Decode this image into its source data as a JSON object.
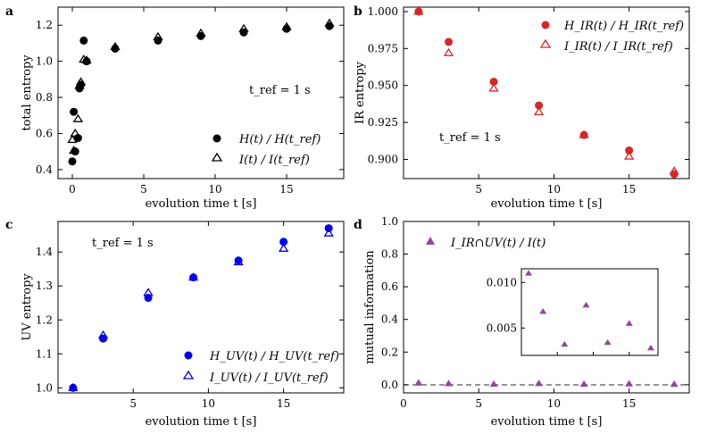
{
  "figure": {
    "panels": [
      {
        "panel_label": "a",
        "xlabel": "evolution time t [s]",
        "ylabel": "total entropy",
        "annotation": "t_ref = 1 s",
        "legend": [
          "H(t) / H(t_ref)",
          "I(t) / I(t_ref)"
        ],
        "xticks": [
          "0",
          "5",
          "10",
          "15"
        ],
        "yticks": [
          "0.4",
          "0.6",
          "0.8",
          "1.0",
          "1.2"
        ]
      },
      {
        "panel_label": "b",
        "xlabel": "evolution time t [s]",
        "ylabel": "IR entropy",
        "annotation": "t_ref = 1 s",
        "legend": [
          "H_IR(t) / H_IR(t_ref)",
          "I_IR(t) / I_IR(t_ref)"
        ],
        "xticks": [
          "5",
          "10",
          "15"
        ],
        "yticks": [
          "0.900",
          "0.925",
          "0.950",
          "0.975",
          "1.000"
        ]
      },
      {
        "panel_label": "c",
        "xlabel": "evolution time t [s]",
        "ylabel": "UV entropy",
        "annotation": "t_ref = 1 s",
        "legend": [
          "H_UV(t) / H_UV(t_ref)",
          "I_UV(t) / I_UV(t_ref)"
        ],
        "xticks": [
          "5",
          "10",
          "15"
        ],
        "yticks": [
          "1.0",
          "1.1",
          "1.2",
          "1.3",
          "1.4"
        ]
      },
      {
        "panel_label": "d",
        "xlabel": "evolution time t [s]",
        "ylabel": "mutual information",
        "legend": [
          "I_IR∩UV(t) / I(t)"
        ],
        "xticks": [
          "0",
          "5",
          "10",
          "15"
        ],
        "yticks": [
          "0.0",
          "0.2",
          "0.4",
          "0.6",
          "0.8",
          "1.0"
        ],
        "inset_yticks": [
          "0.005",
          "0.010"
        ]
      }
    ]
  },
  "chart_data": [
    {
      "type": "scatter",
      "panel": "a",
      "xlabel": "evolution time t [s]",
      "ylabel": "total entropy",
      "xlim": [
        -1,
        19
      ],
      "ylim": [
        0.35,
        1.3
      ],
      "series": [
        {
          "name": "H(t) / H(t_ref)",
          "marker": "filled-circle",
          "color": "#000000",
          "x": [
            0.0,
            0.1,
            0.2,
            0.4,
            0.5,
            0.6,
            0.8,
            1.0,
            3,
            6,
            9,
            12,
            15,
            18
          ],
          "y": [
            0.445,
            0.72,
            0.5,
            0.575,
            0.85,
            0.87,
            1.115,
            1.0,
            1.07,
            1.115,
            1.14,
            1.16,
            1.18,
            1.195
          ]
        },
        {
          "name": "I(t) / I(t_ref)",
          "marker": "open-triangle",
          "color": "#000000",
          "x": [
            0.0,
            0.1,
            0.2,
            0.4,
            0.5,
            0.6,
            0.8,
            1.0,
            3,
            6,
            9,
            12,
            15,
            18
          ],
          "y": [
            0.565,
            0.505,
            0.6,
            0.68,
            0.865,
            0.885,
            1.01,
            1.005,
            1.08,
            1.135,
            1.155,
            1.18,
            1.19,
            1.21
          ]
        }
      ]
    },
    {
      "type": "scatter",
      "panel": "b",
      "xlabel": "evolution time t [s]",
      "ylabel": "IR entropy",
      "xlim": [
        0,
        19
      ],
      "ylim": [
        0.887,
        1.003
      ],
      "series": [
        {
          "name": "H_IR(t) / H_IR(t_ref)",
          "marker": "filled-circle",
          "color": "#d62728",
          "x": [
            1,
            3,
            6,
            9,
            12,
            15,
            18
          ],
          "y": [
            1.0,
            0.9795,
            0.9525,
            0.9365,
            0.9165,
            0.906,
            0.89
          ]
        },
        {
          "name": "I_IR(t) / I_IR(t_ref)",
          "marker": "open-triangle",
          "color": "#d62728",
          "x": [
            1,
            3,
            6,
            9,
            12,
            15,
            18
          ],
          "y": [
            1.0,
            0.972,
            0.948,
            0.932,
            0.9165,
            0.902,
            0.892
          ]
        }
      ]
    },
    {
      "type": "scatter",
      "panel": "c",
      "xlabel": "evolution time t [s]",
      "ylabel": "UV entropy",
      "xlim": [
        0,
        19
      ],
      "ylim": [
        0.985,
        1.49
      ],
      "series": [
        {
          "name": "H_UV(t) / H_UV(t_ref)",
          "marker": "filled-circle",
          "color": "#0000ee",
          "x": [
            1,
            3,
            6,
            9,
            12,
            15,
            18
          ],
          "y": [
            1.0,
            1.145,
            1.265,
            1.325,
            1.375,
            1.43,
            1.47
          ]
        },
        {
          "name": "I_UV(t) / I_UV(t_ref)",
          "marker": "open-triangle",
          "color": "#0000ee",
          "x": [
            1,
            3,
            6,
            9,
            12,
            15,
            18
          ],
          "y": [
            1.0,
            1.155,
            1.28,
            1.325,
            1.37,
            1.41,
            1.455
          ]
        }
      ]
    },
    {
      "type": "scatter",
      "panel": "d",
      "xlabel": "evolution time t [s]",
      "ylabel": "mutual information",
      "xlim": [
        0,
        19
      ],
      "ylim": [
        -0.05,
        1.0
      ],
      "reference_line_y": 0.0,
      "series": [
        {
          "name": "I_IR∩UV(t) / I(t)",
          "marker": "filled-triangle",
          "color": "#8e4a96",
          "x": [
            1,
            3,
            6,
            9,
            12,
            15,
            18
          ],
          "y": [
            0.011,
            0.0068,
            0.0032,
            0.0075,
            0.0034,
            0.0055,
            0.0028
          ]
        }
      ],
      "inset": {
        "xlim": [
          0,
          19
        ],
        "ylim": [
          0.002,
          0.0115
        ]
      }
    }
  ]
}
